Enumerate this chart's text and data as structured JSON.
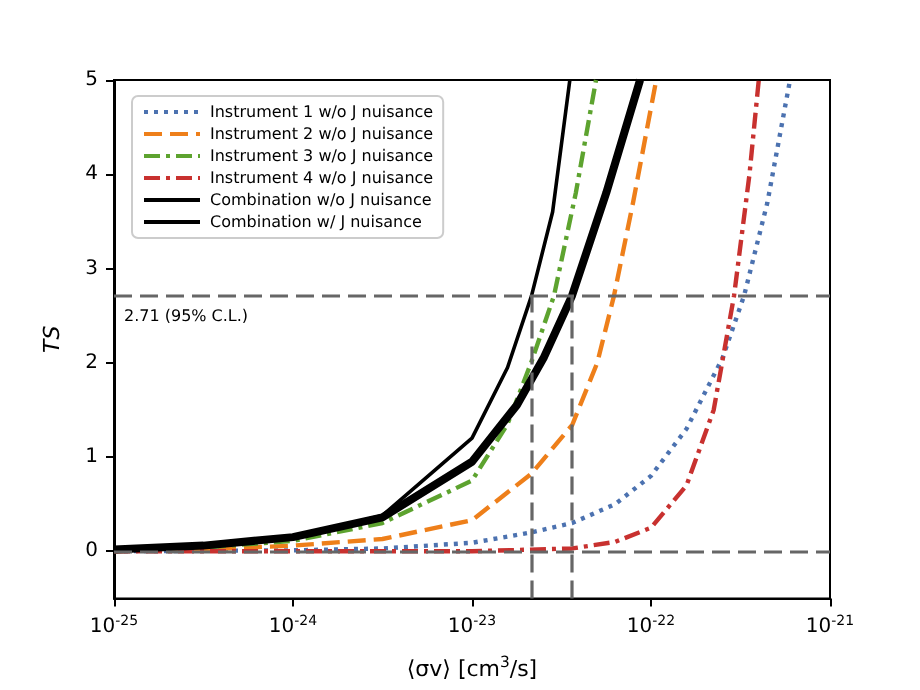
{
  "chart_data": {
    "type": "line",
    "xlabel": "⟨σv⟩ [cm$^{3}$/s]",
    "ylabel": "TS",
    "log": "x",
    "xlim": [
      1e-25,
      1e-21
    ],
    "ylim": [
      -0.5,
      5
    ],
    "xticks": [
      {
        "value": 1e-25,
        "label": "10$^{-25}$"
      },
      {
        "value": 1e-24,
        "label": "10$^{-24}$"
      },
      {
        "value": 1e-23,
        "label": "10$^{-23}$"
      },
      {
        "value": 1e-22,
        "label": "10$^{-22}$"
      },
      {
        "value": 1e-21,
        "label": "10$^{-21}$"
      }
    ],
    "yticks": [
      0,
      1,
      2,
      3,
      4,
      5
    ],
    "grid": false,
    "legend": "top left",
    "marker": "none",
    "series": [
      {
        "name": "Instrument 1 w/o J nuisance",
        "color": "#4c72b0",
        "line_style": "dotted",
        "x": [
          1e-25,
          1e-24,
          3.16e-24,
          1e-23,
          2.14e-23,
          3.63e-23,
          6.31e-23,
          1e-22,
          1.58e-22,
          2.51e-22,
          3.31e-22,
          4.47e-22,
          5.98e-22
        ],
        "values": [
          0,
          0.01,
          0.03,
          0.09,
          0.2,
          0.3,
          0.5,
          0.8,
          1.3,
          2.05,
          2.71,
          3.7,
          5
        ]
      },
      {
        "name": "Instrument 2 w/o J nuisance",
        "color": "#ee7f1a",
        "line_style": "dashed",
        "x": [
          1e-25,
          3.16e-25,
          1e-24,
          3.16e-24,
          1e-23,
          2.14e-23,
          3.63e-23,
          5.01e-23,
          6.21e-23,
          7.94e-23,
          1.07e-22
        ],
        "values": [
          0,
          0.02,
          0.06,
          0.13,
          0.33,
          0.82,
          1.34,
          2.0,
          2.71,
          3.7,
          5
        ]
      },
      {
        "name": "Instrument 3 w/o J nuisance",
        "color": "#5da32f",
        "line_style": "dashdot",
        "x": [
          1e-25,
          3.16e-25,
          1e-24,
          3.16e-24,
          1e-23,
          1.58e-23,
          2.14e-23,
          2.87e-23,
          3.8e-23,
          4.93e-23
        ],
        "values": [
          0.01,
          0.04,
          0.11,
          0.3,
          0.75,
          1.35,
          2.0,
          2.71,
          3.8,
          5
        ]
      },
      {
        "name": "Instrument 4 w/o J nuisance",
        "color": "#c8312f",
        "line_style": "dashdot",
        "x": [
          1e-25,
          1e-23,
          3.63e-23,
          6.31e-23,
          1e-22,
          1.58e-22,
          2.24e-22,
          2.91e-22,
          3.55e-22,
          4e-22
        ],
        "values": [
          0,
          0,
          0.03,
          0.1,
          0.25,
          0.7,
          1.5,
          2.71,
          4.0,
          5
        ]
      },
      {
        "name": "Combination w/o J nuisance",
        "color": "#000000",
        "line_style": "solid",
        "x": [
          1e-25,
          3.16e-25,
          1e-24,
          3.16e-24,
          1e-23,
          1.58e-23,
          2.15e-23,
          2.82e-23,
          3.52e-23
        ],
        "values": [
          0.02,
          0.06,
          0.15,
          0.38,
          1.2,
          1.95,
          2.71,
          3.6,
          5
        ]
      },
      {
        "name": "Combination w/ J nuisance",
        "color": "#000000",
        "line_style": "solid",
        "x": [
          1e-25,
          3.16e-25,
          1e-24,
          3.16e-24,
          1e-23,
          1.78e-23,
          2.51e-23,
          3.62e-23,
          5.62e-23,
          8.69e-23
        ],
        "values": [
          0.02,
          0.06,
          0.15,
          0.36,
          0.95,
          1.55,
          2.05,
          2.71,
          3.8,
          5
        ]
      }
    ],
    "ref_lines": [
      {
        "axis": "y",
        "value": 2.71,
        "label": "2.71 (95% C.L.)",
        "color": "#666666",
        "line_style": "dashed"
      },
      {
        "axis": "y",
        "value": 0,
        "color": "#666666",
        "line_style": "dashed"
      },
      {
        "axis": "x",
        "value": 2.15e-23,
        "color": "#666666",
        "line_style": "dashed"
      },
      {
        "axis": "x",
        "value": 3.62e-23,
        "color": "#666666",
        "line_style": "dashed"
      }
    ]
  }
}
